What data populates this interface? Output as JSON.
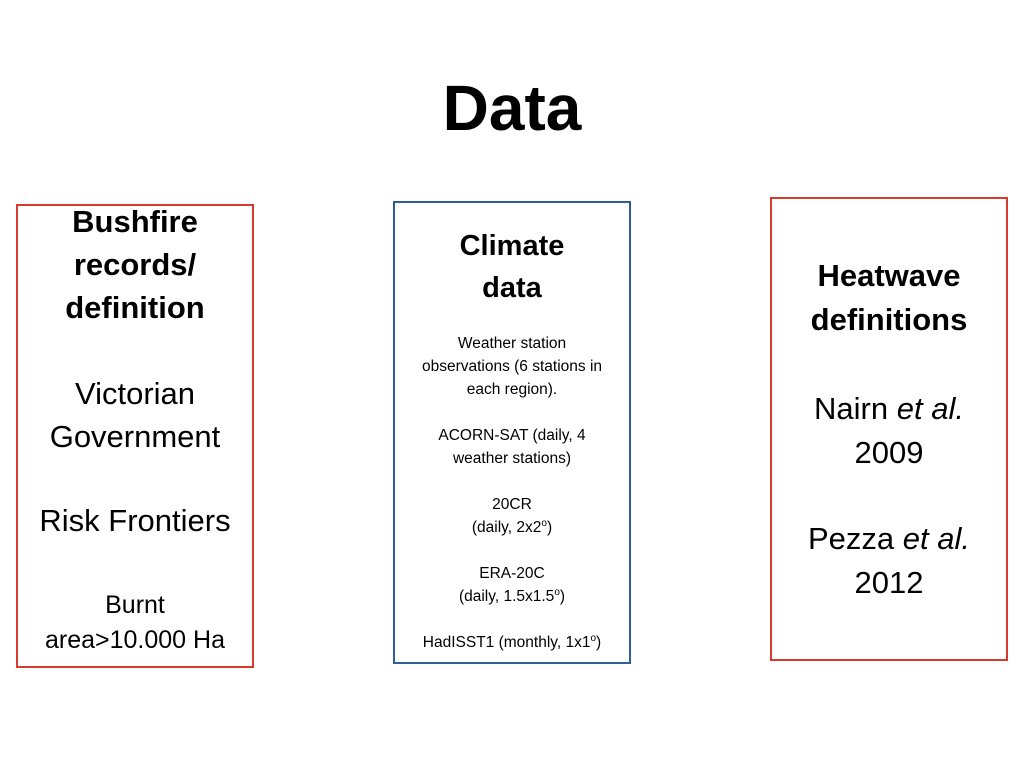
{
  "slide": {
    "title": "Data"
  },
  "colors": {
    "left_border": "#d63b2b",
    "middle_border": "#2f5d98",
    "right_border": "#d63b2b"
  },
  "left_panel": {
    "heading_lines": [
      "Bushfire",
      "records/",
      "definition"
    ],
    "source_1_lines": [
      "Victorian",
      "Government"
    ],
    "source_2": "Risk Frontiers",
    "criterion_lines": [
      "Burnt",
      "area>10.000 Ha"
    ]
  },
  "middle_panel": {
    "heading_lines": [
      "Climate",
      "data"
    ],
    "item_1_lines": [
      "Weather station",
      "observations (6 stations in",
      "each region)."
    ],
    "item_2_lines": [
      "ACORN-SAT (daily, 4",
      "weather stations)"
    ],
    "item_3": {
      "name": "20CR",
      "detail_prefix": "(daily, 2x2",
      "detail_sup": "o",
      "detail_suffix": ")"
    },
    "item_4": {
      "name": "ERA-20C",
      "detail_prefix": "(daily, 1.5x1.5",
      "detail_sup": "o",
      "detail_suffix": ")"
    },
    "item_5": {
      "detail_prefix": "HadISST1 (monthly, 1x1",
      "detail_sup": "o",
      "detail_suffix": ")"
    }
  },
  "right_panel": {
    "heading_lines": [
      "Heatwave",
      "definitions"
    ],
    "ref_1": {
      "author": "Nairn ",
      "etal": "et al.",
      "year": "2009"
    },
    "ref_2": {
      "author": "Pezza ",
      "etal": "et al.",
      "year": "2012"
    }
  }
}
